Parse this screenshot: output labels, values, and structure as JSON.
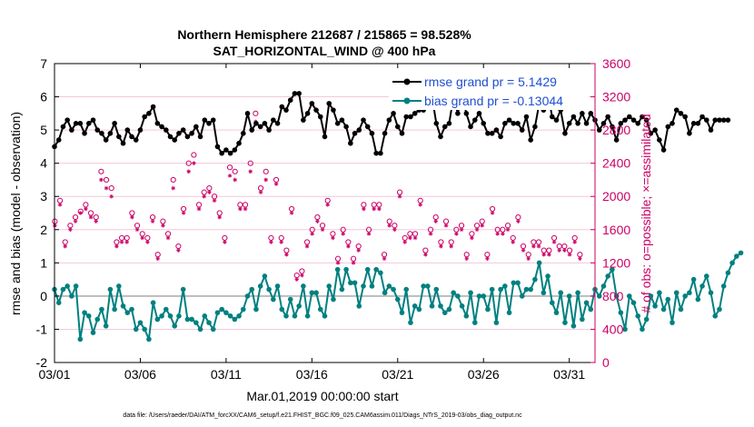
{
  "chart_data": {
    "type": "line",
    "title_line1": "Northern Hemisphere 212687 / 215865 = 98.528%",
    "title_line2": "SAT_HORIZONTAL_WIND @ 400 hPa",
    "xlabel": "Mar.01,2019 00:00:00 start",
    "ylabel": "rmse and bias (model - observation)",
    "ylabel_right": "# of obs: o=possible; ×=assimilated",
    "footnote": "data file: /Users/raeder/DAI/ATM_forcXX/CAM6_setup/f.e21.FHIST_BGC.f09_025.CAM6assim.011/Diags_NTrS_2019-03/obs_diag_output.nc",
    "xlim": [
      0,
      31.5
    ],
    "ylim": [
      -2,
      7
    ],
    "ylim_right": [
      0,
      3600
    ],
    "x_ticks": [
      0,
      5,
      10,
      15,
      20,
      25,
      30
    ],
    "x_tick_labels": [
      "03/01",
      "03/06",
      "03/11",
      "03/16",
      "03/21",
      "03/26",
      "03/31"
    ],
    "y_ticks": [
      -2,
      -1,
      0,
      1,
      2,
      3,
      4,
      5,
      6,
      7
    ],
    "y_tick_labels": [
      "-2",
      "-1",
      "0",
      "1",
      "2",
      "3",
      "4",
      "5",
      "6",
      "7"
    ],
    "y_ticks_right": [
      0,
      400,
      800,
      1200,
      1600,
      2000,
      2400,
      2800,
      3200,
      3600
    ],
    "y_tick_labels_right": [
      "0",
      "400",
      "800",
      "1200",
      "1600",
      "2000",
      "2400",
      "2800",
      "3200",
      "3600"
    ],
    "x_step": 0.25,
    "series": [
      {
        "name": "rmse grand pr = 5.1429",
        "color": "#000000",
        "values": [
          4.5,
          4.7,
          5.1,
          5.3,
          5.0,
          5.2,
          5.2,
          4.9,
          5.2,
          5.3,
          5.0,
          4.9,
          4.7,
          4.9,
          5.2,
          4.8,
          4.6,
          5.0,
          4.8,
          4.7,
          5.0,
          5.4,
          5.5,
          5.7,
          5.2,
          5.1,
          5.0,
          4.8,
          4.7,
          4.9,
          5.0,
          4.8,
          4.9,
          5.1,
          4.8,
          5.3,
          5.2,
          5.3,
          4.5,
          4.3,
          4.4,
          4.3,
          4.4,
          4.6,
          4.9,
          5.5,
          5.0,
          5.2,
          5.1,
          5.2,
          5.0,
          5.3,
          5.2,
          5.7,
          5.6,
          5.9,
          6.1,
          6.1,
          5.3,
          5.5,
          5.8,
          5.6,
          5.4,
          4.8,
          5.8,
          5.6,
          5.2,
          5.3,
          5.1,
          4.6,
          4.9,
          5.0,
          5.3,
          5.1,
          4.9,
          4.3,
          4.3,
          4.9,
          5.3,
          5.5,
          5.1,
          4.9,
          5.4,
          5.4,
          5.5,
          5.6,
          5.6,
          5.7,
          6.0,
          5.2,
          4.8,
          5.1,
          5.2,
          6.0,
          5.5,
          6.1,
          5.5,
          5.1,
          5.3,
          5.5,
          5.2,
          4.9,
          4.9,
          5.0,
          4.8,
          5.2,
          5.3,
          5.2,
          5.2,
          5.0,
          5.4,
          4.7,
          5.1,
          5.8,
          5.6,
          6.1,
          5.4,
          5.3,
          5.6,
          4.9,
          5.2,
          5.4,
          5.2,
          5.5,
          5.2,
          5.5,
          5.3,
          5.0,
          5.2,
          5.4,
          5.1,
          4.7,
          5.2,
          5.3,
          5.4,
          5.3,
          5.2,
          5.4,
          5.3,
          4.9,
          5.0,
          4.7,
          4.4,
          5.1,
          5.2,
          5.6,
          5.5,
          5.4,
          4.9,
          5.2,
          5.2,
          5.4,
          5.3,
          5.0,
          5.3,
          5.3,
          5.3,
          5.3
        ]
      },
      {
        "name": "bias grand pr = -0.13044",
        "color": "#008080",
        "values": [
          0.2,
          -0.2,
          0.2,
          0.3,
          0.0,
          0.3,
          -1.3,
          -0.5,
          -0.6,
          -1.1,
          -0.7,
          -0.4,
          -0.9,
          0.2,
          -0.4,
          0.3,
          -0.3,
          -0.5,
          -0.4,
          -1.0,
          -0.8,
          -1.0,
          -1.3,
          -0.2,
          -0.7,
          -0.6,
          -0.4,
          -0.6,
          -0.9,
          -0.6,
          0.2,
          -0.7,
          -0.7,
          -0.8,
          -1.0,
          -0.6,
          -0.8,
          -1.0,
          -0.5,
          -0.4,
          -0.5,
          -0.6,
          -0.7,
          -0.6,
          -0.4,
          0.0,
          0.2,
          -0.4,
          0.3,
          0.6,
          0.2,
          -0.1,
          0.3,
          -0.4,
          -0.6,
          -0.1,
          -0.6,
          -0.3,
          0.3,
          -0.6,
          0.1,
          0.1,
          -0.4,
          -0.6,
          0.3,
          -0.1,
          0.8,
          0.2,
          0.8,
          0.4,
          0.4,
          -0.3,
          0.3,
          0.8,
          0.3,
          0.8,
          0.7,
          0.1,
          0.3,
          0.2,
          -0.1,
          -0.5,
          0.2,
          -0.8,
          -0.3,
          -0.4,
          0.3,
          0.3,
          -0.3,
          0.2,
          -0.3,
          -0.5,
          -0.4,
          0.1,
          0.0,
          -0.3,
          -0.6,
          0.1,
          -0.8,
          0.0,
          0.0,
          -0.4,
          0.2,
          -0.8,
          0.2,
          0.3,
          -0.5,
          0.4,
          0.4,
          0.0,
          0.2,
          0.2,
          0.5,
          1.0,
          0.1,
          0.6,
          -0.2,
          -0.5,
          0.1,
          -0.8,
          0.0,
          -0.9,
          0.1,
          -0.7,
          -0.2,
          -0.4,
          0.2,
          0.0,
          0.3,
          0.6,
          0.8,
          0.0,
          -0.5,
          -1.0,
          0.0,
          -0.2,
          -0.6,
          -1.0,
          -0.7,
          0.0,
          -0.3,
          0.1,
          -0.4,
          -0.1,
          -0.8,
          0.1,
          -0.4,
          0.0,
          0.1,
          0.5,
          -0.1,
          0.3,
          0.6,
          0.1,
          -0.6,
          -0.4,
          0.3,
          0.7,
          1.0,
          1.2,
          1.3
        ]
      }
    ],
    "obs_possible": [
      1700,
      1950,
      1450,
      1650,
      1750,
      1820,
      1900,
      1800,
      1750,
      2300,
      2200,
      2100,
      1450,
      1500,
      1500,
      1800,
      1650,
      1550,
      1500,
      1750,
      1300,
      1700,
      1550,
      2200,
      1400,
      1850,
      2400,
      2500,
      1900,
      2050,
      2100,
      2000,
      1800,
      1500,
      2350,
      2300,
      1900,
      1900,
      2400,
      3000,
      2100,
      2300,
      1500,
      2200,
      1500,
      1350,
      1850,
      1050,
      1100,
      1450,
      1600,
      1750,
      1650,
      1950,
      1550,
      1250,
      1600,
      1450,
      1250,
      1400,
      1900,
      1600,
      1900,
      1900,
      1300,
      1700,
      1650,
      2050,
      1500,
      1550,
      1550,
      1950,
      1350,
      1600,
      1750,
      1450,
      1700,
      1450,
      1600,
      1650,
      1300,
      1550,
      1650,
      1700,
      1300,
      1850,
      1600,
      1600,
      1650,
      1500,
      1750,
      1400,
      1300,
      1450,
      1450,
      1350,
      1350,
      1500,
      1400,
      1400,
      1350,
      1500,
      1300
    ],
    "obs_assimilated": [
      1650,
      1900,
      1400,
      1600,
      1700,
      1800,
      1850,
      1750,
      1700,
      2200,
      2100,
      2000,
      1400,
      1450,
      1450,
      1750,
      1600,
      1500,
      1450,
      1700,
      1250,
      1650,
      1500,
      2100,
      1350,
      1800,
      2300,
      2400,
      1850,
      2000,
      2050,
      1950,
      1750,
      1450,
      2250,
      2200,
      1850,
      1850,
      2300,
      2900,
      2050,
      2200,
      1450,
      2150,
      1450,
      1300,
      1800,
      1000,
      1050,
      1400,
      1550,
      1700,
      1600,
      1900,
      1500,
      1200,
      1550,
      1400,
      1200,
      1350,
      1850,
      1550,
      1850,
      1850,
      1250,
      1650,
      1600,
      2000,
      1450,
      1500,
      1500,
      1900,
      1300,
      1550,
      1700,
      1400,
      1650,
      1400,
      1550,
      1600,
      1250,
      1500,
      1600,
      1650,
      1250,
      1800,
      1550,
      1550,
      1600,
      1450,
      1700,
      1350,
      1250,
      1400,
      1400,
      1300,
      1300,
      1450,
      1350,
      1350,
      1300,
      1450,
      1250
    ]
  }
}
